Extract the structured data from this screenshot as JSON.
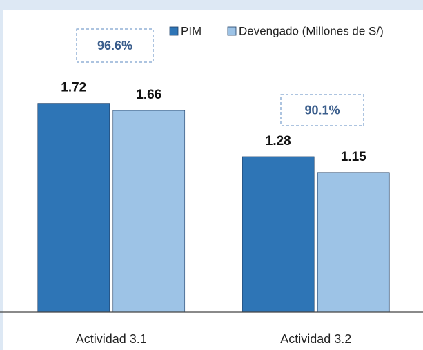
{
  "chart_data": {
    "type": "bar",
    "categories": [
      "Actividad 3.1",
      "Actividad 3.2"
    ],
    "series": [
      {
        "name": "PIM",
        "color": "#2e75b6",
        "values": [
          1.72,
          1.28
        ]
      },
      {
        "name": "Devengado (Millones de S/)",
        "color": "#9dc3e6",
        "values": [
          1.66,
          1.15
        ]
      }
    ],
    "annotations": [
      "96.6%",
      "90.1%"
    ],
    "ylim": [
      0,
      2.4
    ],
    "legend": "top-right"
  }
}
